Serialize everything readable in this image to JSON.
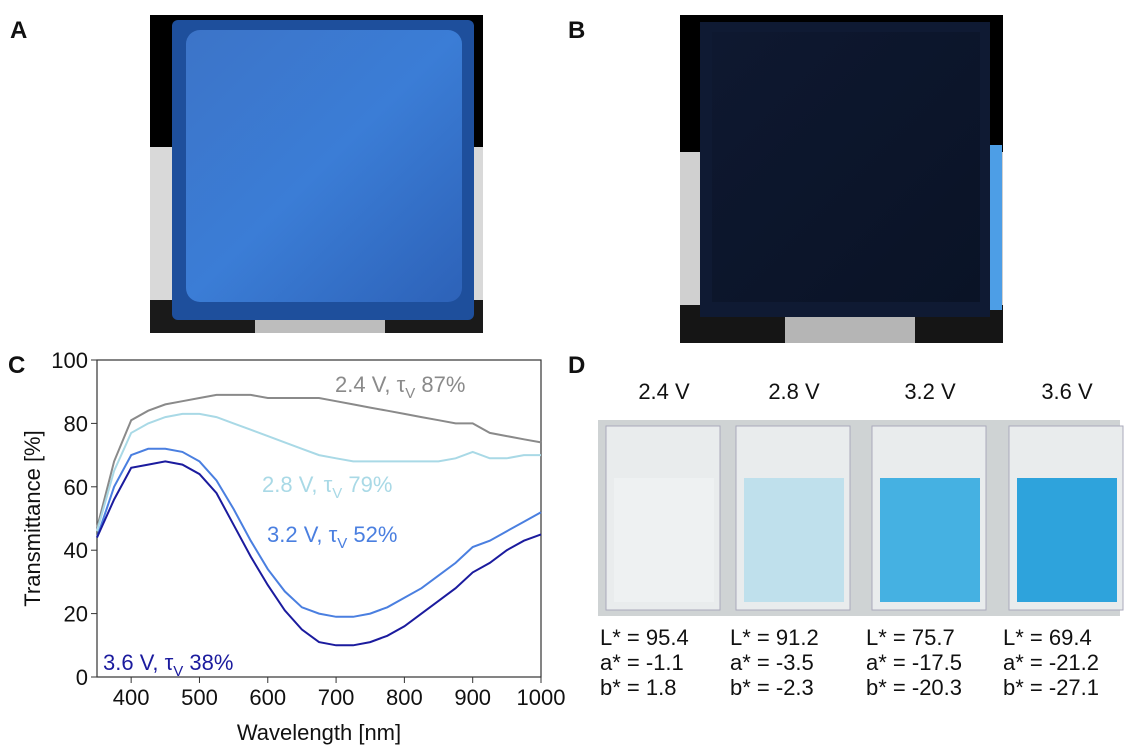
{
  "panels": {
    "A": {
      "label": "A"
    },
    "B": {
      "label": "B"
    },
    "D": {
      "label": "D",
      "columns": [
        {
          "voltage": "2.4 V",
          "L": "L* = 95.4",
          "a": "a* = -1.1",
          "b": "b* = 1.8",
          "color": "#eef1f2"
        },
        {
          "voltage": "2.8 V",
          "L": "L* = 91.2",
          "a": "a* = -3.5",
          "b": "b* = -2.3",
          "color": "#bfe0ec"
        },
        {
          "voltage": "3.2 V",
          "L": "L* = 75.7",
          "a": "a* = -17.5",
          "b": "b* = -20.3",
          "color": "#45b1e2"
        },
        {
          "voltage": "3.6 V",
          "L": "L* = 69.4",
          "a": "a* = -21.2",
          "b": "b* = -27.1",
          "color": "#2ea3dc"
        }
      ]
    }
  },
  "chart_data": {
    "type": "line",
    "panel_label": "C",
    "xlabel": "Wavelength [nm]",
    "ylabel": "Transmittance [%]",
    "xlim": [
      350,
      1000
    ],
    "ylim": [
      0,
      100
    ],
    "xticks": [
      400,
      500,
      600,
      700,
      800,
      900,
      1000
    ],
    "yticks": [
      0,
      20,
      40,
      60,
      80,
      100
    ],
    "x": [
      350,
      375,
      400,
      425,
      450,
      475,
      500,
      525,
      550,
      575,
      600,
      625,
      650,
      675,
      700,
      725,
      750,
      775,
      800,
      825,
      850,
      875,
      900,
      925,
      950,
      975,
      1000
    ],
    "series": [
      {
        "label": [
          "2.4 V, τ",
          "V",
          " 87%"
        ],
        "color": "#8a8a8a",
        "values": [
          47,
          68,
          81,
          84,
          86,
          87,
          88,
          89,
          89,
          89,
          88,
          88,
          88,
          88,
          87,
          86,
          85,
          84,
          83,
          82,
          81,
          80,
          80,
          77,
          76,
          75,
          74
        ]
      },
      {
        "label": [
          "2.8 V, τ",
          "V",
          " 79%"
        ],
        "color": "#a9d9e6",
        "values": [
          46,
          65,
          77,
          80,
          82,
          83,
          83,
          82,
          80,
          78,
          76,
          74,
          72,
          70,
          69,
          68,
          68,
          68,
          68,
          68,
          68,
          69,
          71,
          69,
          69,
          70,
          70
        ]
      },
      {
        "label": [
          "3.2 V, τ",
          "V",
          " 52%"
        ],
        "color": "#4a7fe0",
        "values": [
          44,
          60,
          70,
          72,
          72,
          71,
          68,
          62,
          53,
          43,
          34,
          27,
          22,
          20,
          19,
          19,
          20,
          22,
          25,
          28,
          32,
          36,
          41,
          43,
          46,
          49,
          52
        ]
      },
      {
        "label": [
          "3.6 V, τ",
          "V",
          " 38%"
        ],
        "color": "#1b1b9e",
        "values": [
          44,
          56,
          66,
          67,
          68,
          67,
          64,
          58,
          48,
          38,
          29,
          21,
          15,
          11,
          10,
          10,
          11,
          13,
          16,
          20,
          24,
          28,
          33,
          36,
          40,
          43,
          45
        ]
      }
    ]
  }
}
